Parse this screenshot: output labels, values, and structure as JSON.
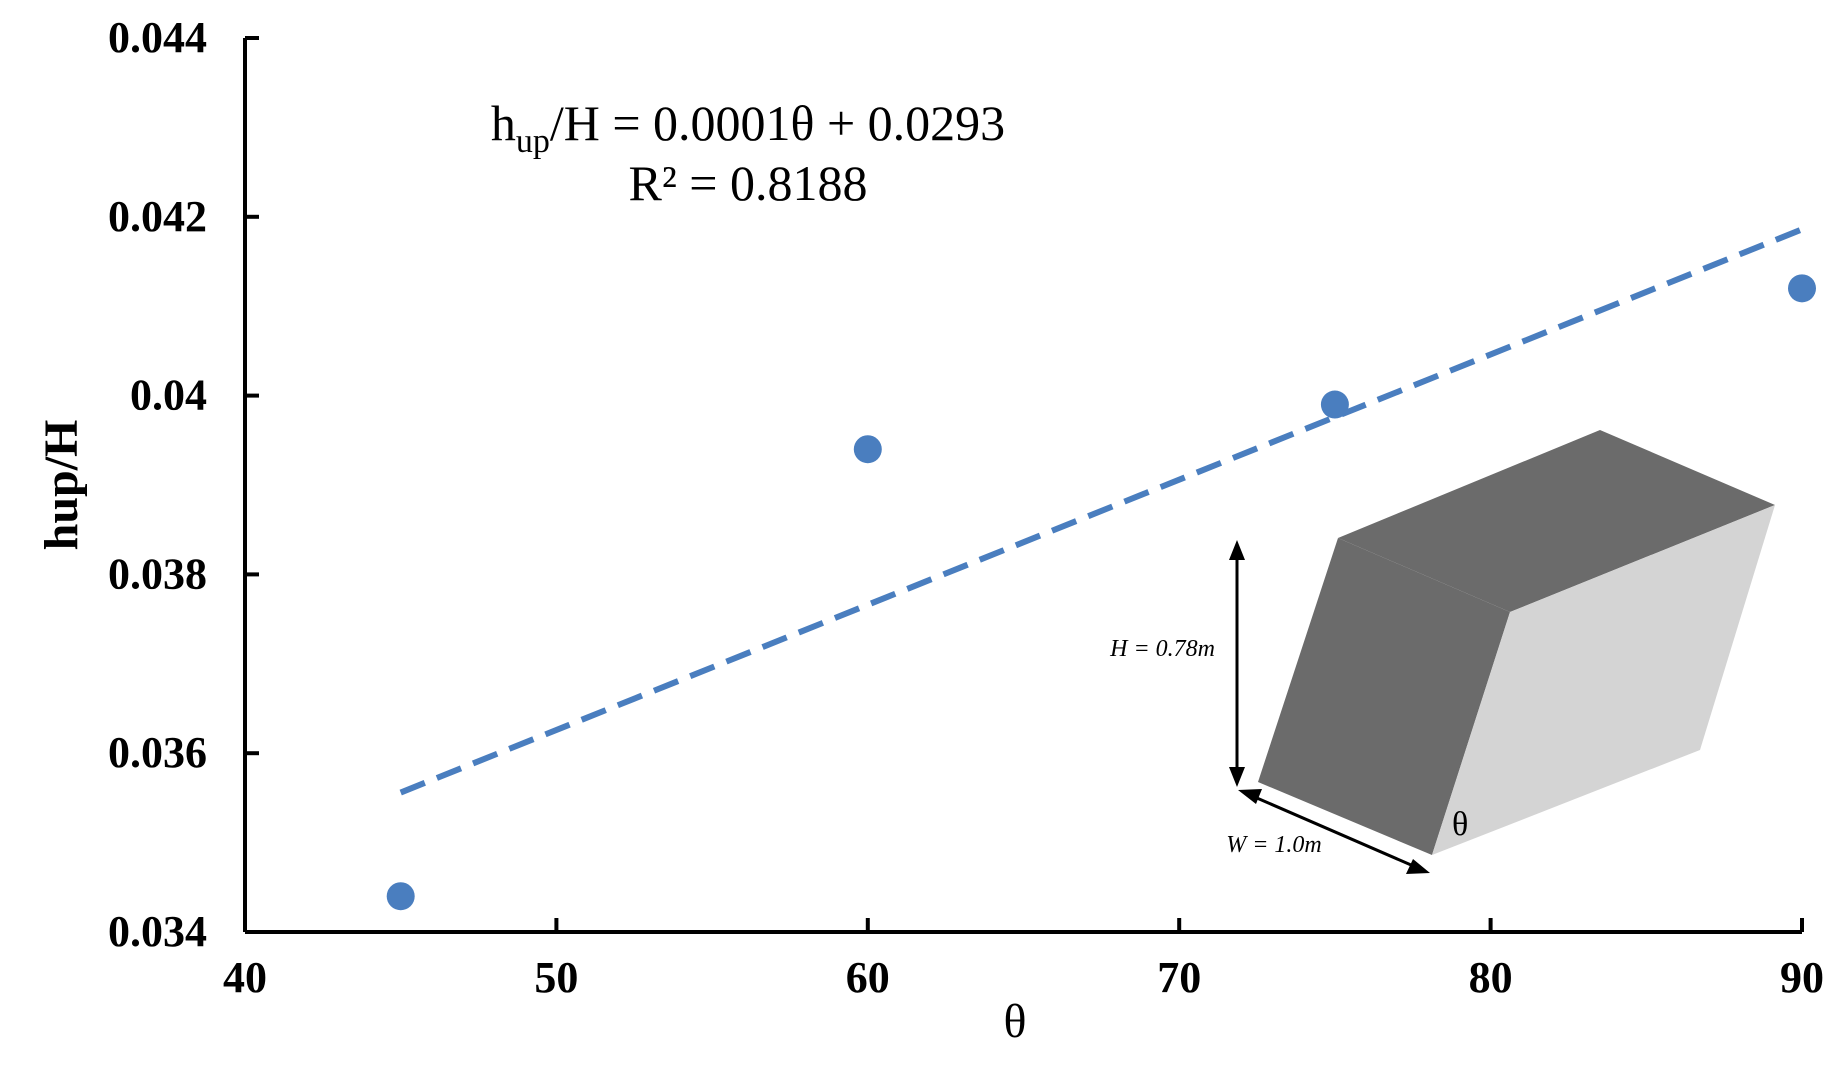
{
  "chart_data": {
    "type": "scatter",
    "xlabel": "θ",
    "ylabel": "hup/H",
    "xlim": [
      40,
      90
    ],
    "ylim": [
      0.034,
      0.044
    ],
    "x_ticks": [
      {
        "value": 40,
        "label": "40"
      },
      {
        "value": 50,
        "label": "50"
      },
      {
        "value": 60,
        "label": "60"
      },
      {
        "value": 70,
        "label": "70"
      },
      {
        "value": 80,
        "label": "80"
      },
      {
        "value": 90,
        "label": "90"
      }
    ],
    "y_ticks": [
      {
        "value": 0.034,
        "label": "0.034"
      },
      {
        "value": 0.036,
        "label": "0.036"
      },
      {
        "value": 0.038,
        "label": "0.038"
      },
      {
        "value": 0.04,
        "label": "0.04"
      },
      {
        "value": 0.042,
        "label": "0.042"
      },
      {
        "value": 0.044,
        "label": "0.044"
      }
    ],
    "grid": false,
    "series": [
      {
        "x": [
          45,
          60,
          75,
          90
        ],
        "y": [
          0.0344,
          0.0394,
          0.0399,
          0.0412
        ],
        "color": "#4a7ebf"
      }
    ],
    "trendline": {
      "x": [
        45,
        90
      ],
      "y": [
        0.03556,
        0.04186
      ],
      "color": "#4a7ebf",
      "style": "dashed"
    },
    "equation": {
      "lhs_main": "h",
      "lhs_sub": "up",
      "rhs": "/H = 0.0001θ + 0.0293",
      "r2": "R² = 0.8188"
    },
    "inset": {
      "height_label": "H = 0.78m",
      "width_label": "W = 1.0m",
      "angle_label": "θ",
      "colors": {
        "dark": "#6b6b6b",
        "light": "#d4d4d4"
      }
    }
  }
}
